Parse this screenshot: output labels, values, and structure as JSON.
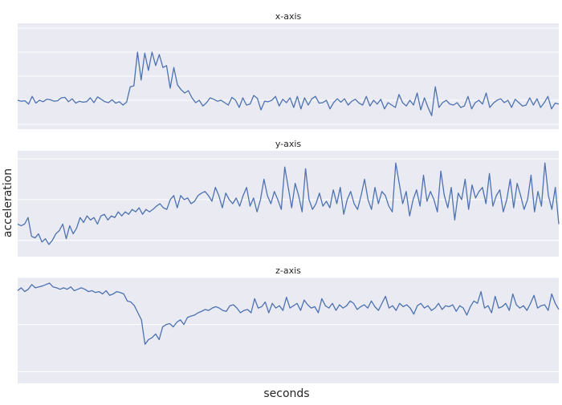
{
  "chart_data": {
    "type": "line",
    "xlabel": "seconds",
    "ylabel": "acceleration",
    "grid": true,
    "panels": [
      {
        "title": "x-axis",
        "ylim": [
          -0.6,
          1.6
        ],
        "yticks": [
          -0.5,
          0.0,
          0.5,
          1.0,
          1.5
        ],
        "values": [
          0.0,
          -0.02,
          -0.01,
          -0.08,
          0.08,
          -0.06,
          0.0,
          -0.03,
          0.02,
          0.01,
          -0.02,
          -0.01,
          0.05,
          0.06,
          -0.03,
          0.03,
          -0.06,
          -0.02,
          -0.04,
          -0.03,
          0.05,
          -0.05,
          0.07,
          0.02,
          -0.03,
          -0.05,
          0.01,
          -0.06,
          -0.03,
          -0.1,
          -0.04,
          0.28,
          0.3,
          1.0,
          0.42,
          0.98,
          0.62,
          1.0,
          0.72,
          0.95,
          0.68,
          0.72,
          0.25,
          0.68,
          0.32,
          0.22,
          0.15,
          0.2,
          0.05,
          -0.05,
          0.0,
          -0.12,
          -0.05,
          0.05,
          0.02,
          -0.02,
          0.0,
          -0.05,
          -0.1,
          0.06,
          0.0,
          -0.15,
          0.05,
          -0.1,
          -0.08,
          0.1,
          0.04,
          -0.2,
          -0.02,
          -0.03,
          0.0,
          0.08,
          -0.12,
          0.02,
          -0.05,
          0.05,
          -0.15,
          0.08,
          -0.18,
          0.05,
          -0.1,
          0.03,
          0.08,
          -0.06,
          -0.05,
          0.0,
          -0.18,
          -0.05,
          0.03,
          -0.04,
          0.03,
          -0.1,
          -0.02,
          0.02,
          -0.06,
          -0.1,
          0.08,
          -0.12,
          0.0,
          -0.08,
          0.02,
          -0.18,
          -0.05,
          -0.1,
          -0.15,
          0.12,
          -0.05,
          -0.12,
          0.0,
          -0.1,
          0.15,
          -0.2,
          0.05,
          -0.15,
          -0.32,
          0.28,
          -0.15,
          -0.05,
          0.0,
          -0.08,
          -0.1,
          -0.05,
          -0.15,
          -0.12,
          0.08,
          -0.18,
          -0.05,
          0.0,
          -0.08,
          0.15,
          -0.15,
          -0.06,
          0.0,
          0.03,
          -0.05,
          0.0,
          -0.15,
          0.02,
          -0.05,
          -0.12,
          -0.1,
          0.05,
          -0.1,
          0.03,
          -0.15,
          -0.05,
          0.08,
          -0.18,
          -0.06,
          -0.08
        ]
      },
      {
        "title": "y-axis",
        "ylim": [
          -0.7,
          0.6
        ],
        "yticks": [
          -0.5,
          0.0,
          0.5
        ],
        "values": [
          -0.3,
          -0.32,
          -0.3,
          -0.22,
          -0.45,
          -0.47,
          -0.42,
          -0.52,
          -0.48,
          -0.55,
          -0.5,
          -0.42,
          -0.38,
          -0.3,
          -0.48,
          -0.32,
          -0.42,
          -0.35,
          -0.22,
          -0.28,
          -0.2,
          -0.25,
          -0.22,
          -0.3,
          -0.2,
          -0.18,
          -0.25,
          -0.2,
          -0.22,
          -0.15,
          -0.2,
          -0.15,
          -0.18,
          -0.12,
          -0.15,
          -0.1,
          -0.18,
          -0.12,
          -0.15,
          -0.12,
          -0.08,
          -0.05,
          -0.1,
          -0.12,
          0.0,
          0.05,
          -0.1,
          0.05,
          0.0,
          0.02,
          -0.05,
          -0.02,
          0.05,
          0.08,
          0.1,
          0.05,
          -0.02,
          0.15,
          0.05,
          -0.1,
          0.08,
          0.0,
          -0.05,
          0.02,
          -0.08,
          0.05,
          0.15,
          -0.08,
          0.02,
          -0.15,
          0.0,
          0.25,
          0.05,
          -0.05,
          0.1,
          0.0,
          -0.12,
          0.4,
          0.15,
          -0.1,
          0.2,
          0.05,
          -0.15,
          0.38,
          0.0,
          -0.12,
          -0.05,
          0.08,
          -0.08,
          -0.02,
          -0.1,
          0.12,
          -0.05,
          0.15,
          -0.18,
          0.0,
          0.1,
          -0.05,
          -0.12,
          0.05,
          0.25,
          0.0,
          -0.12,
          0.15,
          -0.05,
          0.1,
          0.05,
          -0.08,
          -0.15,
          0.45,
          0.2,
          -0.05,
          0.1,
          -0.2,
          0.0,
          0.12,
          -0.08,
          0.3,
          -0.02,
          0.1,
          0.0,
          -0.15,
          0.35,
          0.05,
          -0.1,
          0.15,
          -0.25,
          0.08,
          0.0,
          0.25,
          -0.12,
          0.18,
          0.02,
          0.1,
          0.15,
          -0.05,
          0.32,
          -0.08,
          0.05,
          0.12,
          -0.15,
          0.0,
          0.25,
          -0.1,
          0.2,
          0.05,
          -0.12,
          0.0,
          0.3,
          -0.15,
          0.1,
          -0.08,
          0.45,
          0.05,
          -0.12,
          0.15,
          -0.3
        ]
      },
      {
        "title": "z-axis",
        "ylim": [
          -1.75,
          0.5
        ],
        "yticks": [
          -1.5,
          -0.5,
          0.5
        ],
        "values": [
          0.22,
          0.28,
          0.2,
          0.25,
          0.35,
          0.28,
          0.3,
          0.32,
          0.35,
          0.38,
          0.3,
          0.28,
          0.25,
          0.28,
          0.25,
          0.3,
          0.22,
          0.25,
          0.28,
          0.25,
          0.2,
          0.22,
          0.18,
          0.2,
          0.15,
          0.22,
          0.12,
          0.15,
          0.2,
          0.18,
          0.15,
          0.0,
          -0.02,
          -0.1,
          -0.25,
          -0.4,
          -0.92,
          -0.82,
          -0.78,
          -0.7,
          -0.82,
          -0.55,
          -0.5,
          -0.48,
          -0.55,
          -0.45,
          -0.4,
          -0.5,
          -0.35,
          -0.32,
          -0.3,
          -0.25,
          -0.22,
          -0.18,
          -0.2,
          -0.15,
          -0.12,
          -0.15,
          -0.2,
          -0.22,
          -0.1,
          -0.08,
          -0.15,
          -0.25,
          -0.2,
          -0.18,
          -0.25,
          0.05,
          -0.15,
          -0.12,
          -0.02,
          -0.25,
          -0.05,
          -0.15,
          -0.1,
          -0.2,
          0.08,
          -0.15,
          -0.1,
          -0.05,
          -0.2,
          0.02,
          -0.08,
          -0.15,
          -0.12,
          -0.25,
          0.05,
          -0.1,
          -0.15,
          -0.05,
          -0.2,
          -0.08,
          -0.15,
          -0.1,
          0.0,
          -0.05,
          -0.18,
          -0.12,
          -0.08,
          -0.15,
          0.0,
          -0.12,
          -0.2,
          -0.05,
          0.1,
          -0.15,
          -0.1,
          -0.2,
          -0.05,
          -0.12,
          -0.08,
          -0.15,
          -0.28,
          -0.1,
          -0.05,
          -0.15,
          -0.1,
          -0.2,
          -0.15,
          -0.05,
          -0.18,
          -0.1,
          -0.12,
          -0.08,
          -0.22,
          -0.1,
          -0.15,
          -0.3,
          -0.12,
          0.0,
          -0.05,
          0.2,
          -0.15,
          -0.1,
          -0.25,
          0.1,
          -0.15,
          -0.12,
          -0.05,
          -0.2,
          0.15,
          -0.08,
          -0.15,
          -0.1,
          -0.2,
          -0.05,
          0.12,
          -0.15,
          -0.1,
          -0.08,
          -0.2,
          0.15,
          -0.05,
          -0.18
        ]
      }
    ]
  }
}
